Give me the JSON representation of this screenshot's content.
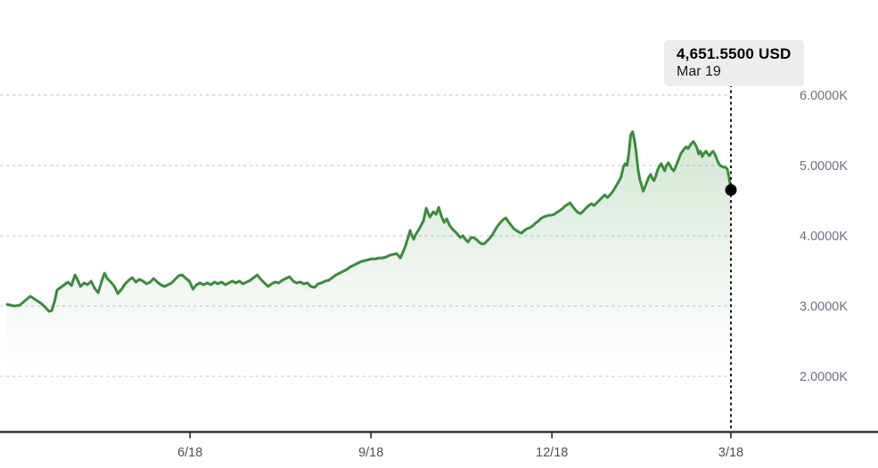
{
  "tooltip": {
    "price": "4,651.5500 USD",
    "date": "Mar 19"
  },
  "colors": {
    "line": "#3b8c3e",
    "fill": "rgba(60,140,60,0.20)",
    "grid": "#d8d8d8",
    "axis": "#33373c",
    "crosshair": "#000000",
    "marker": "#000000",
    "y_label": "#6b7380",
    "x_label": "#4b535c",
    "tooltip_bg": "#ededed"
  },
  "chart_data": {
    "type": "area",
    "title": "",
    "currency": "USD",
    "xlabel": "",
    "ylabel": "",
    "grid": "horizontal dashed",
    "legend": "none",
    "x_unit": "days from series start (~one year before last point)",
    "x_axis": {
      "tick_labels": [
        "6/18",
        "9/18",
        "12/18",
        "3/18"
      ],
      "tick_days": [
        93,
        185,
        277,
        368
      ]
    },
    "y_axis": {
      "tick_labels": [
        "6.0000K",
        "5.0000K",
        "4.0000K",
        "3.0000K",
        "2.0000K"
      ],
      "tick_values": [
        6000,
        5000,
        4000,
        3000,
        2000
      ]
    },
    "last_point": {
      "day": 368,
      "value": 4651.55,
      "label": "Mar 19"
    },
    "points": [
      [
        0,
        3025
      ],
      [
        3.6,
        3000
      ],
      [
        6.4,
        3013
      ],
      [
        9.1,
        3076
      ],
      [
        11.8,
        3139
      ],
      [
        14.5,
        3089
      ],
      [
        17.3,
        3038
      ],
      [
        19.1,
        2990
      ],
      [
        21.4,
        2924
      ],
      [
        22.7,
        2937
      ],
      [
        24.1,
        3063
      ],
      [
        25.4,
        3228
      ],
      [
        27.3,
        3266
      ],
      [
        29.1,
        3304
      ],
      [
        30.9,
        3342
      ],
      [
        32.7,
        3291
      ],
      [
        34.5,
        3443
      ],
      [
        35.9,
        3367
      ],
      [
        37.3,
        3278
      ],
      [
        39.1,
        3329
      ],
      [
        40.9,
        3304
      ],
      [
        42.7,
        3354
      ],
      [
        44.5,
        3253
      ],
      [
        46.3,
        3190
      ],
      [
        48.2,
        3367
      ],
      [
        49.5,
        3468
      ],
      [
        50.9,
        3392
      ],
      [
        52.7,
        3342
      ],
      [
        54.5,
        3278
      ],
      [
        56.3,
        3177
      ],
      [
        58.2,
        3240
      ],
      [
        60,
        3316
      ],
      [
        61.8,
        3367
      ],
      [
        63.6,
        3405
      ],
      [
        65.4,
        3342
      ],
      [
        67.2,
        3380
      ],
      [
        69.1,
        3354
      ],
      [
        70.9,
        3316
      ],
      [
        72.7,
        3342
      ],
      [
        74.5,
        3392
      ],
      [
        76.3,
        3342
      ],
      [
        78.1,
        3304
      ],
      [
        80,
        3278
      ],
      [
        81.8,
        3304
      ],
      [
        83.6,
        3329
      ],
      [
        85.4,
        3380
      ],
      [
        87.2,
        3430
      ],
      [
        89,
        3443
      ],
      [
        90.9,
        3392
      ],
      [
        92.7,
        3354
      ],
      [
        94.5,
        3240
      ],
      [
        96.3,
        3304
      ],
      [
        98.1,
        3329
      ],
      [
        99.9,
        3304
      ],
      [
        101.8,
        3329
      ],
      [
        103.6,
        3304
      ],
      [
        105.4,
        3342
      ],
      [
        107.2,
        3316
      ],
      [
        109,
        3342
      ],
      [
        110.9,
        3304
      ],
      [
        112.7,
        3329
      ],
      [
        114.5,
        3354
      ],
      [
        116.3,
        3329
      ],
      [
        118.1,
        3354
      ],
      [
        119.9,
        3316
      ],
      [
        121.8,
        3342
      ],
      [
        123.6,
        3367
      ],
      [
        125.4,
        3405
      ],
      [
        127.2,
        3443
      ],
      [
        129,
        3380
      ],
      [
        130.8,
        3329
      ],
      [
        132.7,
        3278
      ],
      [
        134.5,
        3316
      ],
      [
        136.3,
        3342
      ],
      [
        138.1,
        3329
      ],
      [
        139.9,
        3367
      ],
      [
        141.7,
        3392
      ],
      [
        143.6,
        3418
      ],
      [
        145.4,
        3354
      ],
      [
        147.2,
        3329
      ],
      [
        149,
        3342
      ],
      [
        150.8,
        3316
      ],
      [
        152.6,
        3329
      ],
      [
        154.5,
        3278
      ],
      [
        156.3,
        3265
      ],
      [
        158.1,
        3316
      ],
      [
        159.9,
        3329
      ],
      [
        161.7,
        3354
      ],
      [
        163.5,
        3367
      ],
      [
        165.4,
        3405
      ],
      [
        167.2,
        3443
      ],
      [
        169,
        3468
      ],
      [
        170.8,
        3494
      ],
      [
        172.6,
        3519
      ],
      [
        174.4,
        3557
      ],
      [
        176.3,
        3582
      ],
      [
        178.1,
        3608
      ],
      [
        179.9,
        3633
      ],
      [
        181.7,
        3646
      ],
      [
        183.5,
        3658
      ],
      [
        185.3,
        3671
      ],
      [
        187.2,
        3671
      ],
      [
        189,
        3684
      ],
      [
        190.8,
        3684
      ],
      [
        192.6,
        3696
      ],
      [
        194.4,
        3722
      ],
      [
        196.2,
        3734
      ],
      [
        198.1,
        3747
      ],
      [
        199.9,
        3684
      ],
      [
        201.3,
        3772
      ],
      [
        202.6,
        3861
      ],
      [
        204,
        3987
      ],
      [
        204.9,
        4076
      ],
      [
        205.8,
        4000
      ],
      [
        206.7,
        3949
      ],
      [
        207.6,
        4013
      ],
      [
        209,
        4076
      ],
      [
        210.3,
        4139
      ],
      [
        211.7,
        4215
      ],
      [
        213.1,
        4392
      ],
      [
        214.9,
        4266
      ],
      [
        216.7,
        4342
      ],
      [
        218.1,
        4304
      ],
      [
        219.4,
        4405
      ],
      [
        220.8,
        4278
      ],
      [
        222.2,
        4190
      ],
      [
        223.5,
        4241
      ],
      [
        224.9,
        4152
      ],
      [
        226.2,
        4101
      ],
      [
        227.6,
        4063
      ],
      [
        229,
        4025
      ],
      [
        230.3,
        3975
      ],
      [
        231.7,
        4000
      ],
      [
        233,
        3949
      ],
      [
        234.4,
        3911
      ],
      [
        235.8,
        3975
      ],
      [
        237.1,
        3975
      ],
      [
        238.5,
        3949
      ],
      [
        239.9,
        3911
      ],
      [
        241.2,
        3886
      ],
      [
        242.6,
        3886
      ],
      [
        243.9,
        3924
      ],
      [
        245.3,
        3962
      ],
      [
        246.7,
        4013
      ],
      [
        248,
        4076
      ],
      [
        249.4,
        4139
      ],
      [
        250.8,
        4190
      ],
      [
        252.1,
        4228
      ],
      [
        253.5,
        4253
      ],
      [
        254.8,
        4203
      ],
      [
        256.2,
        4152
      ],
      [
        257.6,
        4101
      ],
      [
        258.9,
        4076
      ],
      [
        260.3,
        4051
      ],
      [
        261.6,
        4038
      ],
      [
        263,
        4076
      ],
      [
        264.4,
        4101
      ],
      [
        265.7,
        4114
      ],
      [
        267.1,
        4139
      ],
      [
        268.5,
        4177
      ],
      [
        269.8,
        4203
      ],
      [
        271.2,
        4241
      ],
      [
        272.5,
        4266
      ],
      [
        273.9,
        4278
      ],
      [
        275.3,
        4291
      ],
      [
        276.6,
        4291
      ],
      [
        278,
        4304
      ],
      [
        279.4,
        4329
      ],
      [
        280.7,
        4354
      ],
      [
        282.1,
        4380
      ],
      [
        283.4,
        4418
      ],
      [
        284.8,
        4443
      ],
      [
        286.2,
        4468
      ],
      [
        287.5,
        4418
      ],
      [
        288.9,
        4367
      ],
      [
        290.3,
        4329
      ],
      [
        291.6,
        4316
      ],
      [
        293,
        4354
      ],
      [
        294.3,
        4392
      ],
      [
        295.7,
        4430
      ],
      [
        297.1,
        4456
      ],
      [
        298.4,
        4430
      ],
      [
        299.8,
        4468
      ],
      [
        301.2,
        4506
      ],
      [
        302.5,
        4544
      ],
      [
        303.9,
        4582
      ],
      [
        305.2,
        4544
      ],
      [
        306.6,
        4582
      ],
      [
        308,
        4633
      ],
      [
        309.3,
        4696
      ],
      [
        310.7,
        4759
      ],
      [
        312.1,
        4835
      ],
      [
        313.4,
        4987
      ],
      [
        314.3,
        5025
      ],
      [
        315.2,
        5000
      ],
      [
        316.1,
        5177
      ],
      [
        317,
        5430
      ],
      [
        318,
        5481
      ],
      [
        318.9,
        5367
      ],
      [
        319.8,
        5203
      ],
      [
        320.7,
        4962
      ],
      [
        321.6,
        4810
      ],
      [
        322.5,
        4722
      ],
      [
        323.4,
        4633
      ],
      [
        324.3,
        4696
      ],
      [
        325.2,
        4759
      ],
      [
        326.1,
        4823
      ],
      [
        327.1,
        4873
      ],
      [
        328,
        4823
      ],
      [
        328.9,
        4785
      ],
      [
        329.8,
        4848
      ],
      [
        330.7,
        4937
      ],
      [
        331.6,
        4987
      ],
      [
        332.5,
        5025
      ],
      [
        333.4,
        4975
      ],
      [
        334.3,
        4924
      ],
      [
        335.2,
        5000
      ],
      [
        336.2,
        5038
      ],
      [
        337.1,
        5000
      ],
      [
        338,
        4949
      ],
      [
        338.9,
        4924
      ],
      [
        339.8,
        4975
      ],
      [
        340.7,
        5038
      ],
      [
        341.6,
        5101
      ],
      [
        342.5,
        5165
      ],
      [
        343.4,
        5203
      ],
      [
        344.3,
        5241
      ],
      [
        345.3,
        5266
      ],
      [
        346.2,
        5241
      ],
      [
        347.1,
        5279
      ],
      [
        348,
        5316
      ],
      [
        348.9,
        5342
      ],
      [
        349.8,
        5304
      ],
      [
        350.7,
        5253
      ],
      [
        351.6,
        5165
      ],
      [
        352.5,
        5203
      ],
      [
        353.4,
        5127
      ],
      [
        354.4,
        5177
      ],
      [
        355.3,
        5203
      ],
      [
        356.2,
        5165
      ],
      [
        357.1,
        5139
      ],
      [
        358,
        5177
      ],
      [
        358.9,
        5203
      ],
      [
        359.8,
        5165
      ],
      [
        360.7,
        5101
      ],
      [
        361.6,
        5038
      ],
      [
        362.5,
        5000
      ],
      [
        363.4,
        4987
      ],
      [
        364.4,
        4975
      ],
      [
        365.3,
        4975
      ],
      [
        366.2,
        4949
      ],
      [
        367.1,
        4823
      ],
      [
        368,
        4651.55
      ]
    ]
  }
}
